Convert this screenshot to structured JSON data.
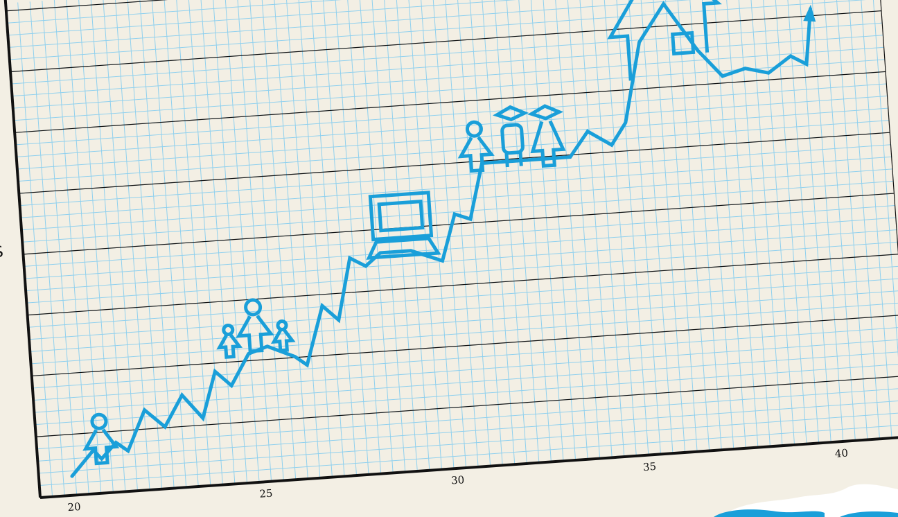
{
  "chart_data": {
    "type": "line",
    "title": "",
    "xlabel": "",
    "ylabel": "$",
    "xticks": [
      "20",
      "25",
      "30",
      "35",
      "40"
    ],
    "xlim": [
      20,
      40
    ],
    "ylim": [
      0,
      8
    ],
    "grid": true,
    "series": [
      {
        "x": [
          20.0,
          20.6,
          20.8,
          21.2,
          21.5,
          22.0,
          22.5,
          23.0,
          23.5,
          23.9,
          24.3,
          24.8,
          25.3,
          26.0,
          26.3,
          26.8,
          27.2,
          27.6,
          28.0,
          28.4,
          29.2,
          30.0,
          30.4,
          30.8,
          31.2,
          32.0,
          33.0,
          33.5,
          34.0,
          34.6,
          35.0,
          35.5,
          36.2,
          37.0,
          37.6,
          38.2,
          38.8,
          39.4,
          39.8,
          40.0
        ],
        "y": [
          0.2,
          0.6,
          0.45,
          0.7,
          0.55,
          1.2,
          0.9,
          1.4,
          1.0,
          1.75,
          1.5,
          2.0,
          2.1,
          1.9,
          1.75,
          2.7,
          2.45,
          3.45,
          3.3,
          3.5,
          3.5,
          3.3,
          4.05,
          3.95,
          4.85,
          4.85,
          4.85,
          4.85,
          5.25,
          5.0,
          5.35,
          6.65,
          7.25,
          6.45,
          6.0,
          6.1,
          6.0,
          6.25,
          6.1,
          7.0
        ]
      }
    ],
    "annotations": [
      {
        "x": 20.8,
        "icon": "person-icon"
      },
      {
        "x": 25.0,
        "icon": "family-icon"
      },
      {
        "x": 29.0,
        "icon": "computer-icon"
      },
      {
        "x": 32.0,
        "icon": "graduates-icon"
      },
      {
        "x": 36.2,
        "icon": "house-icon"
      }
    ],
    "line_color": "#1a9fd9",
    "grid_minor_color": "#8fd0ee",
    "grid_major_color": "#111111"
  }
}
